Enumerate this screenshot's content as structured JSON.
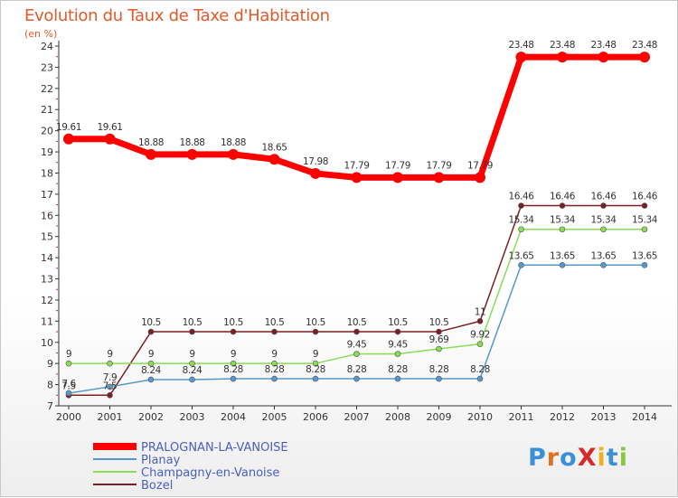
{
  "title": "Evolution du Taux de Taxe d'Habitation",
  "subtitle": "(en %)",
  "logo": "ProXiti",
  "chart_data": {
    "type": "line",
    "title": "Evolution du Taux de Taxe d'Habitation",
    "ylabel": "(en %)",
    "x": [
      "2000",
      "2001",
      "2002",
      "2003",
      "2004",
      "2005",
      "2006",
      "2007",
      "2008",
      "2009",
      "2010",
      "2011",
      "2012",
      "2013",
      "2014"
    ],
    "ylim": [
      7,
      24
    ],
    "yticks": [
      7,
      8,
      9,
      10,
      11,
      12,
      13,
      14,
      15,
      16,
      17,
      18,
      19,
      20,
      21,
      22,
      23,
      24
    ],
    "grid": false,
    "legend": "bottom-left",
    "series": [
      {
        "name": "PRALOGNAN-LA-VANOISE",
        "color": "#ff0000",
        "width": 7,
        "marker": 6,
        "values": [
          19.61,
          19.61,
          18.88,
          18.88,
          18.88,
          18.65,
          17.98,
          17.79,
          17.79,
          17.79,
          17.79,
          23.48,
          23.48,
          23.48,
          23.48
        ]
      },
      {
        "name": "Planay",
        "color": "#5599cc",
        "width": 1.5,
        "marker": 3,
        "values": [
          7.6,
          7.9,
          8.24,
          8.24,
          8.28,
          8.28,
          8.28,
          8.28,
          8.28,
          8.28,
          8.28,
          13.65,
          13.65,
          13.65,
          13.65
        ]
      },
      {
        "name": "Champagny-en-Vanoise",
        "color": "#88dd55",
        "width": 1.5,
        "marker": 3,
        "values": [
          9,
          9,
          9,
          9,
          9,
          9,
          9,
          9.45,
          9.45,
          9.69,
          9.92,
          15.34,
          15.34,
          15.34,
          15.34
        ]
      },
      {
        "name": "Bozel",
        "color": "#7a1f22",
        "width": 1.5,
        "marker": 3,
        "values": [
          7.5,
          7.5,
          10.5,
          10.5,
          10.5,
          10.5,
          10.5,
          10.5,
          10.5,
          10.5,
          11,
          16.46,
          16.46,
          16.46,
          16.46
        ]
      }
    ],
    "value_labels": [
      {
        "series": 0,
        "labels": [
          "19.61",
          "19.61",
          "18.88",
          "18.88",
          "18.88",
          "18.65",
          "17.98",
          "17.79",
          "17.79",
          "17.79",
          "17.79",
          "23.48",
          "23.48",
          "23.48",
          "23.48"
        ]
      },
      {
        "series": 1,
        "labels": [
          "7.6",
          "7.9",
          "8.24",
          "8.24",
          "8.28",
          "8.28",
          "8.28",
          "8.28",
          "8.28",
          "8.28",
          "8.28",
          "13.65",
          "13.65",
          "13.65",
          "13.65"
        ]
      },
      {
        "series": 2,
        "labels": [
          "9",
          "9",
          "9",
          "9",
          "9",
          "9",
          "9",
          "9.45",
          "9.45",
          "9.69",
          "9.92",
          "15.34",
          "15.34",
          "15.34",
          "15.34"
        ]
      },
      {
        "series": 3,
        "labels": [
          "7.5",
          "7.5",
          "10.5",
          "10.5",
          "10.5",
          "10.5",
          "10.5",
          "10.5",
          "10.5",
          "10.5",
          "11",
          "16.46",
          "16.46",
          "16.46",
          "16.46"
        ]
      }
    ]
  }
}
